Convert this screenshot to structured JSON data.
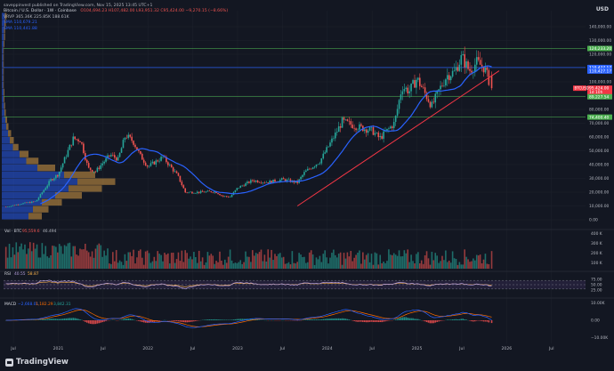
{
  "header": {
    "published_by": "saveppinvest published on TradingView.com, Nov 15, 2025 13:45 UTC+1",
    "symbol": "Bitcoin / U.S. Dollar · 1W · Coinbase",
    "ohlc": "O104,694.23 H107,482.00 L93,951.32 C95,424.00 −9,270.15 (−8.66%)",
    "vrvp": "VRVP  365.36K  225.85K  188.61K",
    "sma1": "SMA  110,679.21",
    "sma2": "SMA  110,441.88"
  },
  "currency": "USD",
  "price_labels": {
    "r1": "124,233.20",
    "r2": "110,427.17",
    "r3": "110,427.17",
    "current": "95,424.00",
    "countdown": "1d 10h",
    "r4": "89,227.54",
    "r5": "74,400.40"
  },
  "price_axis": [
    "140,000.00",
    "130,000.00",
    "120,000.00",
    "110,000.00",
    "100,000.00",
    "90,000.00",
    "80,000.00",
    "70,000.00",
    "60,000.00",
    "50,000.00",
    "40,000.00",
    "30,000.00",
    "20,000.00",
    "10,000.00",
    "0.00"
  ],
  "volume_pane": {
    "label": "Vol · BTC",
    "value1": "95,559.6",
    "value2": "46.494",
    "axis": [
      "400 K",
      "300 K",
      "200 K",
      "100 K"
    ]
  },
  "rsi_pane": {
    "label": "RSI",
    "value1": "40.55",
    "value2": "58.87",
    "axis": [
      "75.00",
      "50.00",
      "25.00"
    ]
  },
  "macd_pane": {
    "label": "MACD",
    "value1": "−2,668.01",
    "value2": "1,182.29",
    "value3": "3,842.31",
    "axis": [
      "10.00K",
      "0.00",
      "−10.00K"
    ]
  },
  "time_axis": [
    "Jul",
    "2021",
    "Jul",
    "2022",
    "Jul",
    "2023",
    "Jul",
    "2024",
    "Jul",
    "2025",
    "Jul",
    "2026",
    "Jul"
  ],
  "colors": {
    "up": "#26a69a",
    "down": "#ef5350",
    "sma": "#2962ff",
    "trend": "#f23645",
    "resistance": "#4caf50",
    "background": "#131722"
  },
  "branding": "TradingView",
  "chart_data": {
    "type": "candlestick",
    "symbol": "Bitcoin / U.S. Dollar",
    "interval": "1W",
    "exchange": "Coinbase",
    "ylim": [
      0,
      140000
    ],
    "last": {
      "open": 104694.23,
      "high": 107482.0,
      "low": 93951.32,
      "close": 95424.0
    },
    "horizontal_levels": [
      124233.2,
      110427.17,
      89227.54,
      74400.4
    ],
    "trendline": [
      {
        "date": "2023-09",
        "price": 10000
      },
      {
        "date": "2025-12",
        "price": 108000
      }
    ],
    "weekly_closes": [
      {
        "date": "2020-06",
        "close": 9300
      },
      {
        "date": "2020-08",
        "close": 11600
      },
      {
        "date": "2020-10",
        "close": 13200
      },
      {
        "date": "2020-12",
        "close": 28900
      },
      {
        "date": "2021-01",
        "close": 33000
      },
      {
        "date": "2021-02",
        "close": 46000
      },
      {
        "date": "2021-03",
        "close": 58800
      },
      {
        "date": "2021-04",
        "close": 57800
      },
      {
        "date": "2021-05",
        "close": 37300
      },
      {
        "date": "2021-06",
        "close": 35000
      },
      {
        "date": "2021-07",
        "close": 41500
      },
      {
        "date": "2021-08",
        "close": 47100
      },
      {
        "date": "2021-09",
        "close": 43800
      },
      {
        "date": "2021-10",
        "close": 61300
      },
      {
        "date": "2021-11",
        "close": 57000
      },
      {
        "date": "2021-12",
        "close": 46300
      },
      {
        "date": "2022-01",
        "close": 38500
      },
      {
        "date": "2022-03",
        "close": 45500
      },
      {
        "date": "2022-05",
        "close": 31800
      },
      {
        "date": "2022-06",
        "close": 19900
      },
      {
        "date": "2022-08",
        "close": 20000
      },
      {
        "date": "2022-10",
        "close": 20500
      },
      {
        "date": "2022-11",
        "close": 17100
      },
      {
        "date": "2022-12",
        "close": 16500
      },
      {
        "date": "2023-01",
        "close": 23100
      },
      {
        "date": "2023-03",
        "close": 28500
      },
      {
        "date": "2023-05",
        "close": 27200
      },
      {
        "date": "2023-07",
        "close": 29200
      },
      {
        "date": "2023-09",
        "close": 27000
      },
      {
        "date": "2023-10",
        "close": 34600
      },
      {
        "date": "2023-12",
        "close": 42300
      },
      {
        "date": "2024-02",
        "close": 61200
      },
      {
        "date": "2024-03",
        "close": 71300
      },
      {
        "date": "2024-05",
        "close": 67500
      },
      {
        "date": "2024-07",
        "close": 64600
      },
      {
        "date": "2024-08",
        "close": 59000
      },
      {
        "date": "2024-10",
        "close": 70200
      },
      {
        "date": "2024-11",
        "close": 96500
      },
      {
        "date": "2024-12",
        "close": 93400
      },
      {
        "date": "2025-01",
        "close": 102400
      },
      {
        "date": "2025-03",
        "close": 82500
      },
      {
        "date": "2025-04",
        "close": 94200
      },
      {
        "date": "2025-05",
        "close": 104600
      },
      {
        "date": "2025-06",
        "close": 107100
      },
      {
        "date": "2025-07",
        "close": 118000
      },
      {
        "date": "2025-08",
        "close": 108200
      },
      {
        "date": "2025-09",
        "close": 114000
      },
      {
        "date": "2025-10",
        "close": 110400
      },
      {
        "date": "2025-11",
        "close": 95424
      }
    ]
  }
}
